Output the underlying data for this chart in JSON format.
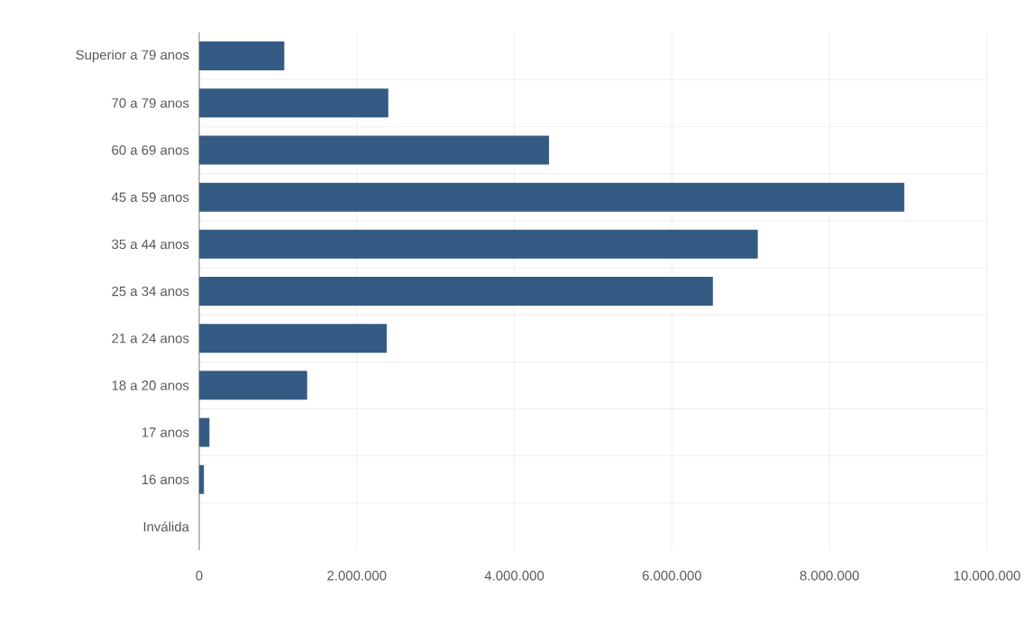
{
  "chart_data": {
    "type": "bar",
    "orientation": "horizontal",
    "categories": [
      "Superior a 79 anos",
      "70 a 79 anos",
      "60 a 69 anos",
      "45 a 59 anos",
      "35 a 44 anos",
      "25 a 34 anos",
      "21 a 24 anos",
      "18 a 20 anos",
      "17 anos",
      "16 anos",
      "Inválida"
    ],
    "values": [
      1080000,
      2400000,
      4440000,
      8950000,
      7090000,
      6520000,
      2380000,
      1370000,
      130000,
      60000,
      0
    ],
    "color": "#335b84",
    "xlim": [
      0,
      10000000
    ],
    "xticks": [
      0,
      {
        "value": 2000000,
        "label": "2.000.000"
      },
      {
        "value": 4000000,
        "label": "4.000.000"
      },
      {
        "value": 6000000,
        "label": "6.000.000"
      },
      {
        "value": 8000000,
        "label": "8.000.000"
      },
      {
        "value": 10000000,
        "label": "10.000.000"
      }
    ],
    "grid": true
  }
}
